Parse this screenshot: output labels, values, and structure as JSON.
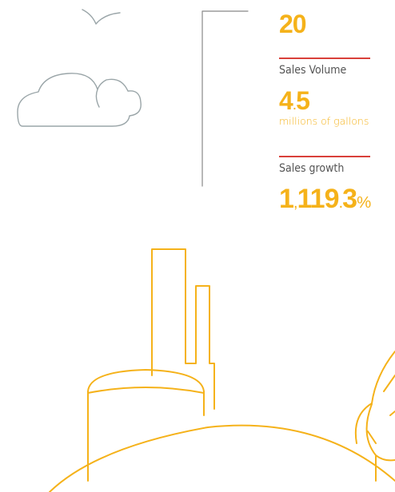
{
  "stats": {
    "first_value": "20",
    "volume_label": "Sales Volume",
    "volume_value": "4.5",
    "volume_unit": "millions of gallons",
    "growth_label": "Sales growth",
    "growth_value": "1,119.3%"
  }
}
